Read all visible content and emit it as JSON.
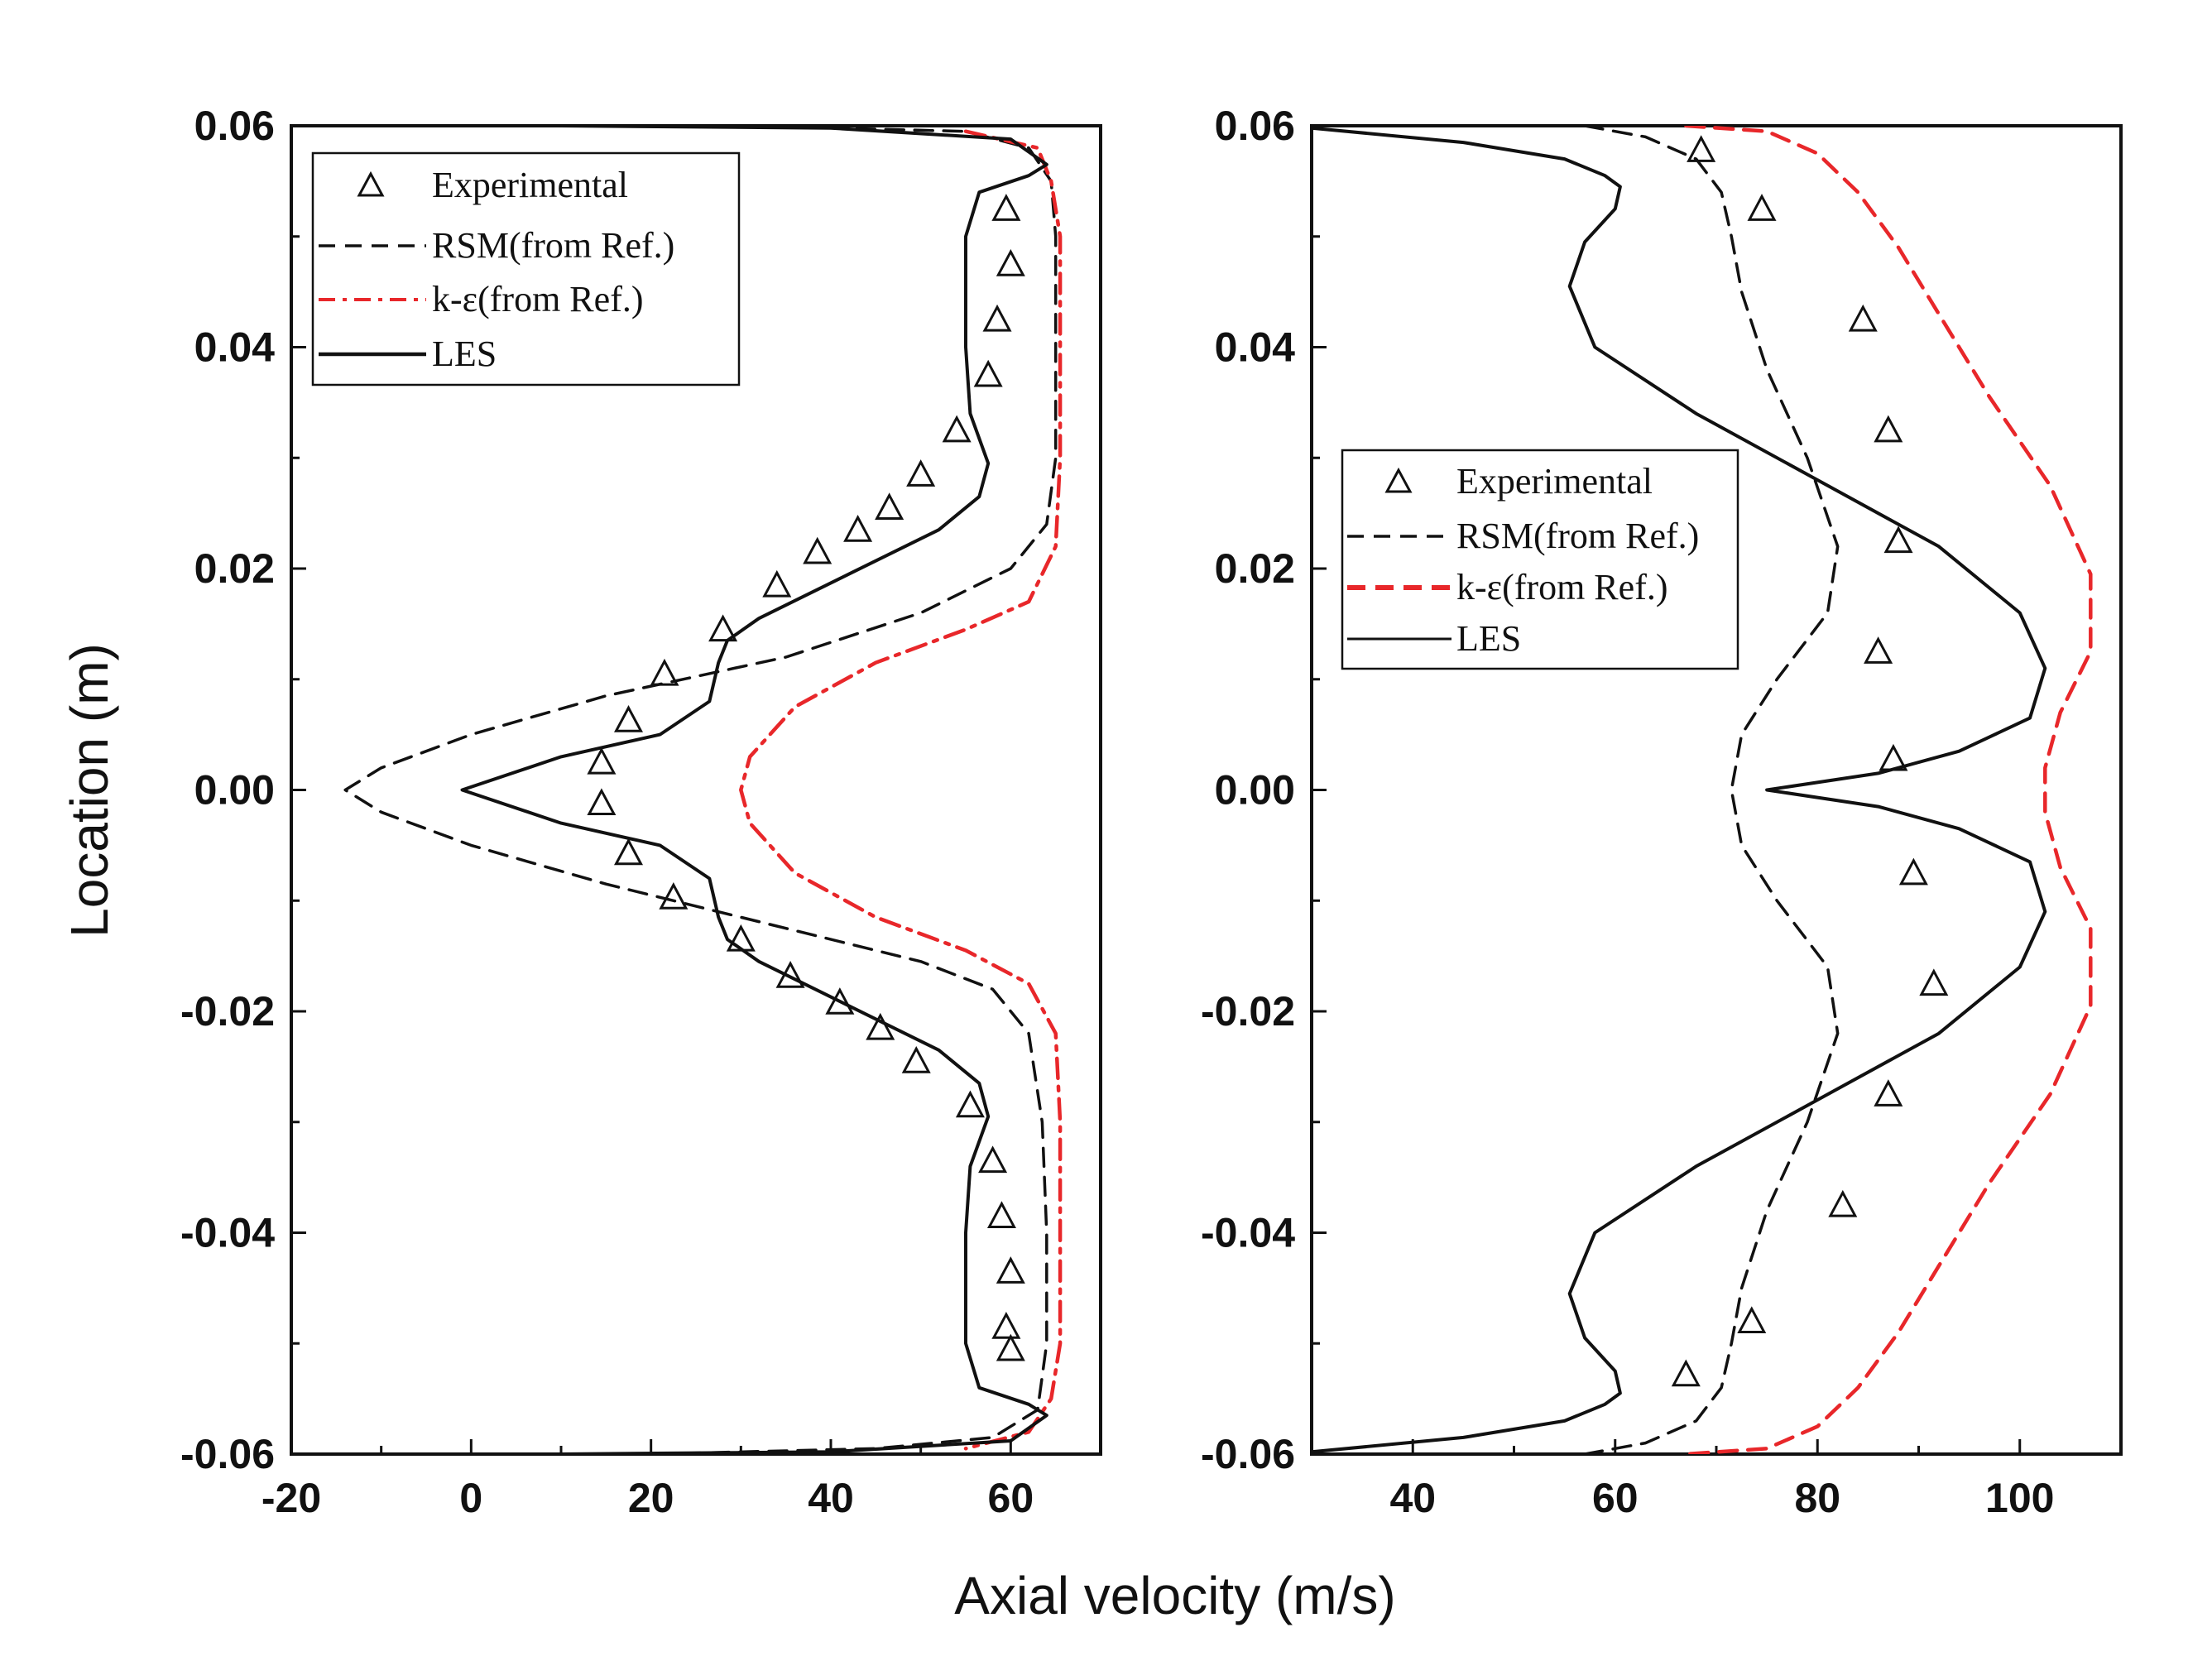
{
  "figure": {
    "xlabel": "Axial velocity (m/s)",
    "ylabel": "Location (m)"
  },
  "chart_data": [
    {
      "type": "line",
      "title": "",
      "xlim": [
        -20,
        70
      ],
      "ylim": [
        -0.06,
        0.06
      ],
      "xticks": [
        -20,
        0,
        20,
        40,
        60
      ],
      "xtick_labels": [
        "-20",
        "0",
        "20",
        "40",
        "60"
      ],
      "yticks": [
        -0.06,
        -0.04,
        -0.02,
        0.0,
        0.02,
        0.04,
        0.06
      ],
      "ytick_labels": [
        "-0.06",
        "-0.04",
        "-0.02",
        "0.00",
        "0.02",
        "0.04",
        "0.06"
      ],
      "legend_position": "top-left",
      "legend": [
        {
          "label": "Experimental",
          "style": "triangle",
          "color": "#111111"
        },
        {
          "label": "RSM(from Ref.)",
          "style": "dashed",
          "color": "#111111"
        },
        {
          "label": "k-ε(from Ref.)",
          "style": "dashdot",
          "color": "#e8272a"
        },
        {
          "label": "LES",
          "style": "solid",
          "color": "#111111"
        }
      ],
      "series": [
        {
          "name": "Experimental",
          "style": "triangle",
          "color": "#111111",
          "points": [
            [
              59.5,
              0.0525
            ],
            [
              60,
              0.0475
            ],
            [
              58.5,
              0.0425
            ],
            [
              57.5,
              0.0375
            ],
            [
              54,
              0.0325
            ],
            [
              50,
              0.0285
            ],
            [
              46.5,
              0.0255
            ],
            [
              43,
              0.0235
            ],
            [
              38.5,
              0.0215
            ],
            [
              34,
              0.0185
            ],
            [
              28,
              0.0145
            ],
            [
              21.5,
              0.0105
            ],
            [
              17.5,
              0.0063
            ],
            [
              14.5,
              0.0025
            ],
            [
              14.5,
              -0.0012
            ],
            [
              17.5,
              -0.0057
            ],
            [
              22.5,
              -0.0097
            ],
            [
              30,
              -0.0135
            ],
            [
              35.5,
              -0.0168
            ],
            [
              41,
              -0.0192
            ],
            [
              45.5,
              -0.0215
            ],
            [
              49.5,
              -0.0245
            ],
            [
              55.5,
              -0.0285
            ],
            [
              58,
              -0.0335
            ],
            [
              59,
              -0.0385
            ],
            [
              60,
              -0.0435
            ],
            [
              59.5,
              -0.0485
            ],
            [
              60,
              -0.0505
            ]
          ]
        },
        {
          "name": "RSM(from Ref.)",
          "style": "dashed",
          "color": "#111111",
          "points": [
            [
              30,
              0.06
            ],
            [
              55,
              0.0595
            ],
            [
              62,
              0.058
            ],
            [
              64.5,
              0.055
            ],
            [
              65,
              0.05
            ],
            [
              65,
              0.04
            ],
            [
              65,
              0.03
            ],
            [
              64,
              0.024
            ],
            [
              60,
              0.02
            ],
            [
              50,
              0.016
            ],
            [
              35,
              0.012
            ],
            [
              15,
              0.0085
            ],
            [
              0,
              0.005
            ],
            [
              -10,
              0.002
            ],
            [
              -14,
              0
            ],
            [
              -10,
              -0.002
            ],
            [
              0,
              -0.005
            ],
            [
              15,
              -0.0085
            ],
            [
              35,
              -0.0125
            ],
            [
              50,
              -0.0155
            ],
            [
              58,
              -0.018
            ],
            [
              62,
              -0.022
            ],
            [
              63.5,
              -0.03
            ],
            [
              64,
              -0.04
            ],
            [
              64,
              -0.05
            ],
            [
              63,
              -0.056
            ],
            [
              58,
              -0.0585
            ],
            [
              45,
              -0.0595
            ],
            [
              20,
              -0.06
            ]
          ]
        },
        {
          "name": "k-ε(from Ref.)",
          "style": "dashdot",
          "color": "#e8272a",
          "points": [
            [
              55,
              0.0595
            ],
            [
              63,
              0.058
            ],
            [
              64.5,
              0.055
            ],
            [
              65.5,
              0.05
            ],
            [
              65.5,
              0.04
            ],
            [
              65.5,
              0.03
            ],
            [
              65,
              0.022
            ],
            [
              62,
              0.017
            ],
            [
              55,
              0.0145
            ],
            [
              45,
              0.0115
            ],
            [
              36,
              0.0075
            ],
            [
              31,
              0.003
            ],
            [
              30,
              0
            ],
            [
              31,
              -0.003
            ],
            [
              36,
              -0.0075
            ],
            [
              45,
              -0.0115
            ],
            [
              55,
              -0.0145
            ],
            [
              62,
              -0.0175
            ],
            [
              65,
              -0.022
            ],
            [
              65.5,
              -0.03
            ],
            [
              65.5,
              -0.04
            ],
            [
              65.5,
              -0.05
            ],
            [
              64.5,
              -0.055
            ],
            [
              62,
              -0.058
            ],
            [
              55,
              -0.0595
            ]
          ]
        },
        {
          "name": "LES",
          "style": "solid",
          "color": "#111111",
          "points": [
            [
              10,
              0.06
            ],
            [
              40,
              0.0598
            ],
            [
              60,
              0.0588
            ],
            [
              64,
              0.0565
            ],
            [
              62,
              0.0555
            ],
            [
              56.5,
              0.054
            ],
            [
              55,
              0.05
            ],
            [
              55,
              0.04
            ],
            [
              55.5,
              0.034
            ],
            [
              57.5,
              0.0295
            ],
            [
              56.5,
              0.0265
            ],
            [
              52,
              0.0235
            ],
            [
              42,
              0.0195
            ],
            [
              32,
              0.0155
            ],
            [
              28.5,
              0.0135
            ],
            [
              27.5,
              0.0115
            ],
            [
              26.5,
              0.008
            ],
            [
              21,
              0.005
            ],
            [
              10,
              0.003
            ],
            [
              -1,
              0
            ],
            [
              10,
              -0.003
            ],
            [
              21,
              -0.005
            ],
            [
              26.5,
              -0.008
            ],
            [
              27.5,
              -0.0115
            ],
            [
              28.5,
              -0.0135
            ],
            [
              32,
              -0.0155
            ],
            [
              42,
              -0.0195
            ],
            [
              52,
              -0.0235
            ],
            [
              56.5,
              -0.0265
            ],
            [
              57.5,
              -0.0295
            ],
            [
              55.5,
              -0.034
            ],
            [
              55,
              -0.04
            ],
            [
              55,
              -0.05
            ],
            [
              56.5,
              -0.054
            ],
            [
              62,
              -0.0555
            ],
            [
              64,
              -0.0565
            ],
            [
              60,
              -0.0588
            ],
            [
              40,
              -0.0598
            ],
            [
              10,
              -0.06
            ]
          ]
        }
      ]
    },
    {
      "type": "line",
      "title": "",
      "xlim": [
        30,
        110
      ],
      "ylim": [
        -0.06,
        0.06
      ],
      "xticks": [
        40,
        60,
        80,
        100
      ],
      "xtick_labels": [
        "40",
        "60",
        "80",
        "100"
      ],
      "yticks": [
        -0.06,
        -0.04,
        -0.02,
        0.0,
        0.02,
        0.04,
        0.06
      ],
      "ytick_labels": [
        "-0.06",
        "-0.04",
        "-0.02",
        "0.00",
        "0.02",
        "0.04",
        "0.06"
      ],
      "legend_position": "center-left",
      "legend": [
        {
          "label": "Experimental",
          "style": "triangle",
          "color": "#111111"
        },
        {
          "label": "RSM(from Ref.)",
          "style": "dashed",
          "color": "#111111"
        },
        {
          "label": "k-ε(from Ref.)",
          "style": "dashed",
          "color": "#e8272a"
        },
        {
          "label": "LES",
          "style": "solid",
          "color": "#111111"
        }
      ],
      "series": [
        {
          "name": "Experimental",
          "style": "triangle",
          "color": "#111111",
          "points": [
            [
              68.5,
              0.0578
            ],
            [
              74.5,
              0.0525
            ],
            [
              84.5,
              0.0425
            ],
            [
              87,
              0.0325
            ],
            [
              88,
              0.0225
            ],
            [
              86,
              0.0125
            ],
            [
              87.5,
              0.0028
            ],
            [
              89.5,
              -0.0075
            ],
            [
              91.5,
              -0.0175
            ],
            [
              87,
              -0.0275
            ],
            [
              82.5,
              -0.0375
            ],
            [
              73.5,
              -0.048
            ],
            [
              67,
              -0.0528
            ]
          ]
        },
        {
          "name": "RSM(from Ref.)",
          "style": "dashed",
          "color": "#111111",
          "points": [
            [
              57,
              0.06
            ],
            [
              63,
              0.059
            ],
            [
              68,
              0.057
            ],
            [
              70.5,
              0.054
            ],
            [
              71.5,
              0.05
            ],
            [
              72.5,
              0.045
            ],
            [
              75,
              0.038
            ],
            [
              79,
              0.03
            ],
            [
              82,
              0.022
            ],
            [
              81,
              0.016
            ],
            [
              76,
              0.01
            ],
            [
              72.5,
              0.005
            ],
            [
              71.5,
              0
            ],
            [
              72.5,
              -0.005
            ],
            [
              76,
              -0.01
            ],
            [
              81,
              -0.016
            ],
            [
              82,
              -0.022
            ],
            [
              79,
              -0.03
            ],
            [
              75,
              -0.038
            ],
            [
              72.5,
              -0.045
            ],
            [
              71.5,
              -0.05
            ],
            [
              70.5,
              -0.054
            ],
            [
              68,
              -0.057
            ],
            [
              63,
              -0.059
            ],
            [
              57,
              -0.06
            ]
          ]
        },
        {
          "name": "k-ε(from Ref.)",
          "style": "dashed",
          "color": "#e8272a",
          "points": [
            [
              67,
              0.06
            ],
            [
              75,
              0.0595
            ],
            [
              80,
              0.0575
            ],
            [
              84,
              0.054
            ],
            [
              88,
              0.049
            ],
            [
              92,
              0.043
            ],
            [
              97,
              0.0355
            ],
            [
              103,
              0.0275
            ],
            [
              107,
              0.0195
            ],
            [
              107,
              0.0125
            ],
            [
              104,
              0.007
            ],
            [
              102.5,
              0.002
            ],
            [
              102.5,
              0
            ],
            [
              102.5,
              -0.002
            ],
            [
              104,
              -0.007
            ],
            [
              107,
              -0.0125
            ],
            [
              107,
              -0.0195
            ],
            [
              103,
              -0.0275
            ],
            [
              97,
              -0.0355
            ],
            [
              92,
              -0.043
            ],
            [
              88,
              -0.049
            ],
            [
              84,
              -0.054
            ],
            [
              80,
              -0.0575
            ],
            [
              75,
              -0.0595
            ],
            [
              67,
              -0.06
            ]
          ]
        },
        {
          "name": "LES",
          "style": "solid",
          "color": "#111111",
          "points": [
            [
              30,
              0.0598
            ],
            [
              45,
              0.0585
            ],
            [
              55,
              0.057
            ],
            [
              59,
              0.0555
            ],
            [
              60.5,
              0.0545
            ],
            [
              60,
              0.0525
            ],
            [
              57,
              0.0495
            ],
            [
              55.5,
              0.0455
            ],
            [
              58,
              0.04
            ],
            [
              68,
              0.034
            ],
            [
              80,
              0.028
            ],
            [
              92,
              0.022
            ],
            [
              100,
              0.016
            ],
            [
              102.5,
              0.011
            ],
            [
              101,
              0.0065
            ],
            [
              94,
              0.0035
            ],
            [
              86,
              0.0015
            ],
            [
              75,
              0
            ],
            [
              86,
              -0.0015
            ],
            [
              94,
              -0.0035
            ],
            [
              101,
              -0.0065
            ],
            [
              102.5,
              -0.011
            ],
            [
              100,
              -0.016
            ],
            [
              92,
              -0.022
            ],
            [
              80,
              -0.028
            ],
            [
              68,
              -0.034
            ],
            [
              58,
              -0.04
            ],
            [
              55.5,
              -0.0455
            ],
            [
              57,
              -0.0495
            ],
            [
              60,
              -0.0525
            ],
            [
              60.5,
              -0.0545
            ],
            [
              59,
              -0.0555
            ],
            [
              55,
              -0.057
            ],
            [
              45,
              -0.0585
            ],
            [
              30,
              -0.0598
            ]
          ]
        }
      ]
    }
  ]
}
